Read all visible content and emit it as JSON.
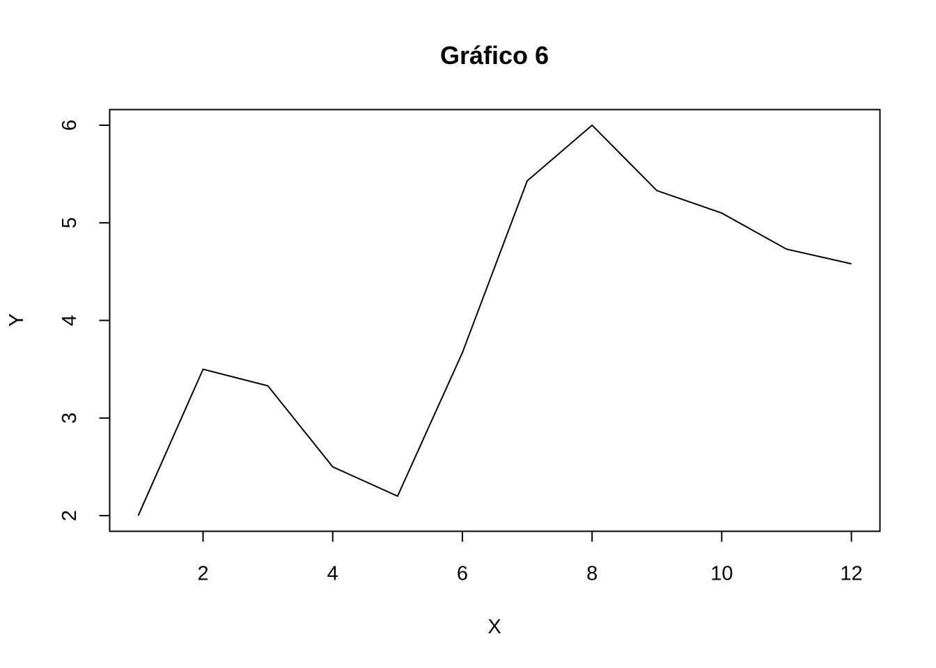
{
  "chart_data": {
    "type": "line",
    "title": "Gráfico 6",
    "xlabel": "X",
    "ylabel": "Y",
    "x": [
      1,
      2,
      3,
      4,
      5,
      6,
      7,
      8,
      9,
      10,
      11,
      12
    ],
    "series": [
      {
        "values": [
          2.0,
          3.5,
          3.33,
          2.5,
          2.2,
          3.67,
          5.43,
          6.0,
          5.33,
          5.1,
          4.73,
          4.58
        ]
      }
    ],
    "xlim": [
      0.56,
      12.44
    ],
    "ylim": [
      1.84,
      6.16
    ],
    "x_ticks": [
      "2",
      "4",
      "6",
      "8",
      "10",
      "12"
    ],
    "y_ticks": [
      "2",
      "3",
      "4",
      "5",
      "6"
    ],
    "grid": false,
    "line_color": "#000000"
  }
}
